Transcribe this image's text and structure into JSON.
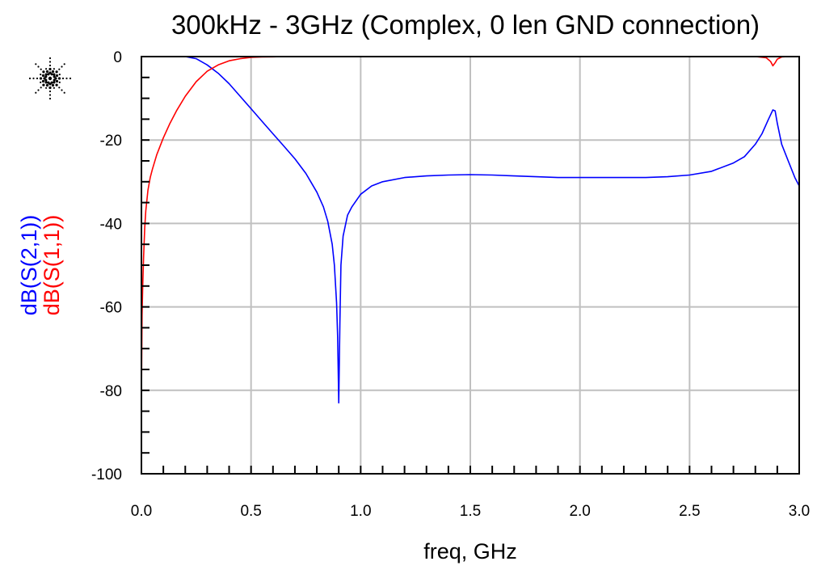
{
  "chart_data": {
    "type": "line",
    "title": "300kHz - 3GHz (Complex, 0 len GND connection)",
    "xlabel": "freq, GHz",
    "ylabel_parts": [
      {
        "text": "dB(S(2,1))",
        "color": "#0000ff"
      },
      {
        "text": "dB(S(1,1))",
        "color": "#ff0000"
      }
    ],
    "xlim": [
      0,
      3.0
    ],
    "ylim": [
      -100,
      0
    ],
    "grid": true,
    "xticks": [
      "0.0",
      "0.5",
      "1.0",
      "1.5",
      "2.0",
      "2.5",
      "3.0"
    ],
    "yticks": [
      "0",
      "-20",
      "-40",
      "-60",
      "-80",
      "-100"
    ],
    "series": [
      {
        "name": "dB(S(2,1))",
        "color": "#0000ff",
        "x": [
          0.0003,
          0.05,
          0.1,
          0.15,
          0.2,
          0.25,
          0.3,
          0.35,
          0.4,
          0.45,
          0.5,
          0.55,
          0.6,
          0.65,
          0.7,
          0.75,
          0.8,
          0.83,
          0.85,
          0.87,
          0.88,
          0.89,
          0.895,
          0.9,
          0.905,
          0.91,
          0.92,
          0.94,
          0.96,
          1.0,
          1.05,
          1.1,
          1.2,
          1.3,
          1.4,
          1.5,
          1.6,
          1.7,
          1.8,
          1.9,
          2.0,
          2.1,
          2.2,
          2.3,
          2.4,
          2.5,
          2.6,
          2.7,
          2.75,
          2.8,
          2.83,
          2.86,
          2.88,
          2.89,
          2.9,
          2.92,
          2.95,
          2.98,
          3.0
        ],
        "y": [
          0,
          0,
          0,
          0,
          0,
          -0.5,
          -2,
          -4,
          -6.5,
          -9.5,
          -12.5,
          -15.5,
          -18.5,
          -21.5,
          -24.5,
          -28,
          -32.5,
          -36,
          -39.5,
          -45,
          -50,
          -59,
          -67,
          -83,
          -64,
          -50,
          -43,
          -38,
          -36,
          -33,
          -31,
          -30,
          -29,
          -28.6,
          -28.4,
          -28.3,
          -28.4,
          -28.6,
          -28.8,
          -29,
          -29,
          -29,
          -29,
          -29,
          -28.8,
          -28.4,
          -27.5,
          -25.5,
          -24,
          -21,
          -18.5,
          -15,
          -12.8,
          -13,
          -16,
          -21,
          -25,
          -29,
          -31
        ]
      },
      {
        "name": "dB(S(1,1))",
        "color": "#ff0000",
        "x": [
          0.0003,
          0.003,
          0.006,
          0.01,
          0.015,
          0.02,
          0.03,
          0.04,
          0.05,
          0.07,
          0.1,
          0.13,
          0.16,
          0.2,
          0.25,
          0.3,
          0.35,
          0.4,
          0.45,
          0.5,
          0.55,
          0.6,
          0.65,
          0.7,
          1.0,
          1.5,
          2.0,
          2.5,
          2.8,
          2.85,
          2.87,
          2.88,
          2.89,
          2.9,
          2.92,
          2.95,
          3.0
        ],
        "y": [
          -80,
          -62,
          -55,
          -48,
          -41,
          -37,
          -32,
          -29,
          -27,
          -23.5,
          -19.5,
          -16,
          -13,
          -9.5,
          -6,
          -3.5,
          -2,
          -1,
          -0.5,
          -0.2,
          -0.1,
          -0.05,
          0,
          0,
          0,
          0,
          0,
          0,
          0,
          -0.3,
          -1.2,
          -2.2,
          -1.5,
          -0.6,
          -0.1,
          0,
          0
        ]
      }
    ]
  }
}
